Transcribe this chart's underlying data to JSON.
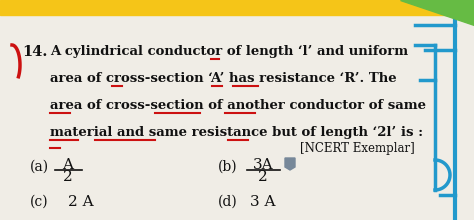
{
  "background_color": "#f0ede6",
  "text_color": "#111111",
  "underline_color": "#cc1111",
  "blue_color": "#2299cc",
  "yellow_color": "#f5c518",
  "green_color": "#66bb44",
  "q_number": "14.",
  "line1": "A cylindrical conductor of length ‘l’ and uniform",
  "line2": "area of cross-section ‘A’ has resistance ‘R’. The",
  "line3": "area of cross-section of another conductor of same",
  "line4": "material and same resistance but of length ‘2l’ is :",
  "ncert": "[NCERT Exemplar]",
  "opt_a_top": "A",
  "opt_a_bot": "2",
  "opt_b_top": "3A",
  "opt_b_bot": "2",
  "opt_c": "2 A",
  "opt_d": "3 A",
  "fs_main": 9.5,
  "fs_qnum": 10.5,
  "fs_opt": 10
}
